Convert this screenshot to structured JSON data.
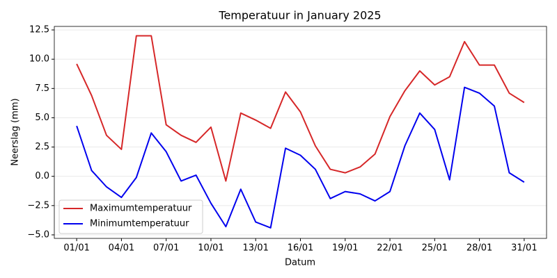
{
  "chart_data": {
    "type": "line",
    "title": "Temperatuur in January 2025",
    "xlabel": "Datum",
    "ylabel": "Neerslag (mm)",
    "categories": [
      "01/01",
      null,
      null,
      "04/01",
      null,
      null,
      "07/01",
      null,
      null,
      "10/01",
      null,
      null,
      "13/01",
      null,
      null,
      "16/01",
      null,
      null,
      "19/01",
      null,
      null,
      "22/01",
      null,
      null,
      "25/01",
      null,
      null,
      "28/01",
      null,
      null,
      "31/01"
    ],
    "series": [
      {
        "name": "Maximumtemperatuur",
        "color": "#d62728",
        "values": [
          9.6,
          6.9,
          3.5,
          2.3,
          12.0,
          12.0,
          4.4,
          3.5,
          2.9,
          4.2,
          -0.4,
          5.4,
          4.8,
          4.1,
          7.2,
          5.5,
          2.6,
          0.6,
          0.3,
          0.8,
          1.9,
          5.1,
          7.3,
          9.0,
          7.8,
          8.5,
          11.5,
          9.5,
          9.5,
          7.1,
          6.3
        ]
      },
      {
        "name": "Minimumtemperatuur",
        "color": "#0000ee",
        "values": [
          4.3,
          0.5,
          -0.9,
          -1.8,
          -0.1,
          3.7,
          2.1,
          -0.4,
          0.1,
          -2.3,
          -4.3,
          -1.1,
          -3.9,
          -4.4,
          2.4,
          1.8,
          0.6,
          -1.9,
          -1.3,
          -1.5,
          -2.1,
          -1.3,
          2.6,
          5.4,
          4.0,
          -0.3,
          7.6,
          7.1,
          6.0,
          0.3,
          -0.5
        ]
      }
    ],
    "ylim": [
      -5.3,
      12.8
    ],
    "yticks": [
      {
        "value": -5,
        "label": "−5.0"
      },
      {
        "value": -2.5,
        "label": "−2.5"
      },
      {
        "value": 0,
        "label": "0.0"
      },
      2.5,
      {
        "value": 5,
        "label": "5.0"
      },
      7.5,
      {
        "value": 10,
        "label": "10.0"
      },
      12.5
    ],
    "grid": true,
    "legend": "lower left"
  }
}
